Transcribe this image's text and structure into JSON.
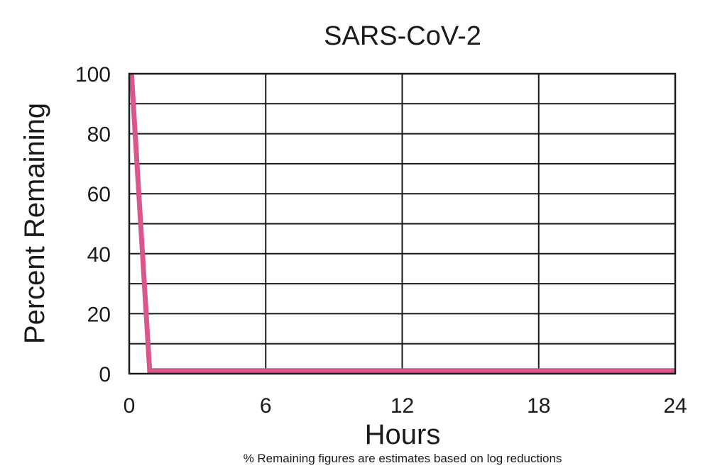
{
  "chart_data": {
    "type": "line",
    "title": "SARS-CoV-2",
    "xlabel": "Hours",
    "ylabel": "Percent Remaining",
    "footnote": "% Remaining figures are estimates based on log reductions",
    "xlim": [
      0,
      24
    ],
    "ylim": [
      0,
      100
    ],
    "x_ticks": [
      0,
      6,
      12,
      18,
      24
    ],
    "x_tick_labels": [
      "0",
      "6",
      "12",
      "18",
      "24"
    ],
    "y_ticks": [
      0,
      20,
      40,
      60,
      80,
      100
    ],
    "y_tick_labels": [
      "0",
      "20",
      "40",
      "60",
      "80",
      "100"
    ],
    "y_minor_gridlines": [
      10,
      30,
      50,
      70,
      90
    ],
    "grid": true,
    "legend": "none",
    "series": [
      {
        "color": "#d9578a",
        "x": [
          0.1,
          0.9,
          24
        ],
        "y": [
          100,
          1,
          1
        ]
      }
    ]
  }
}
